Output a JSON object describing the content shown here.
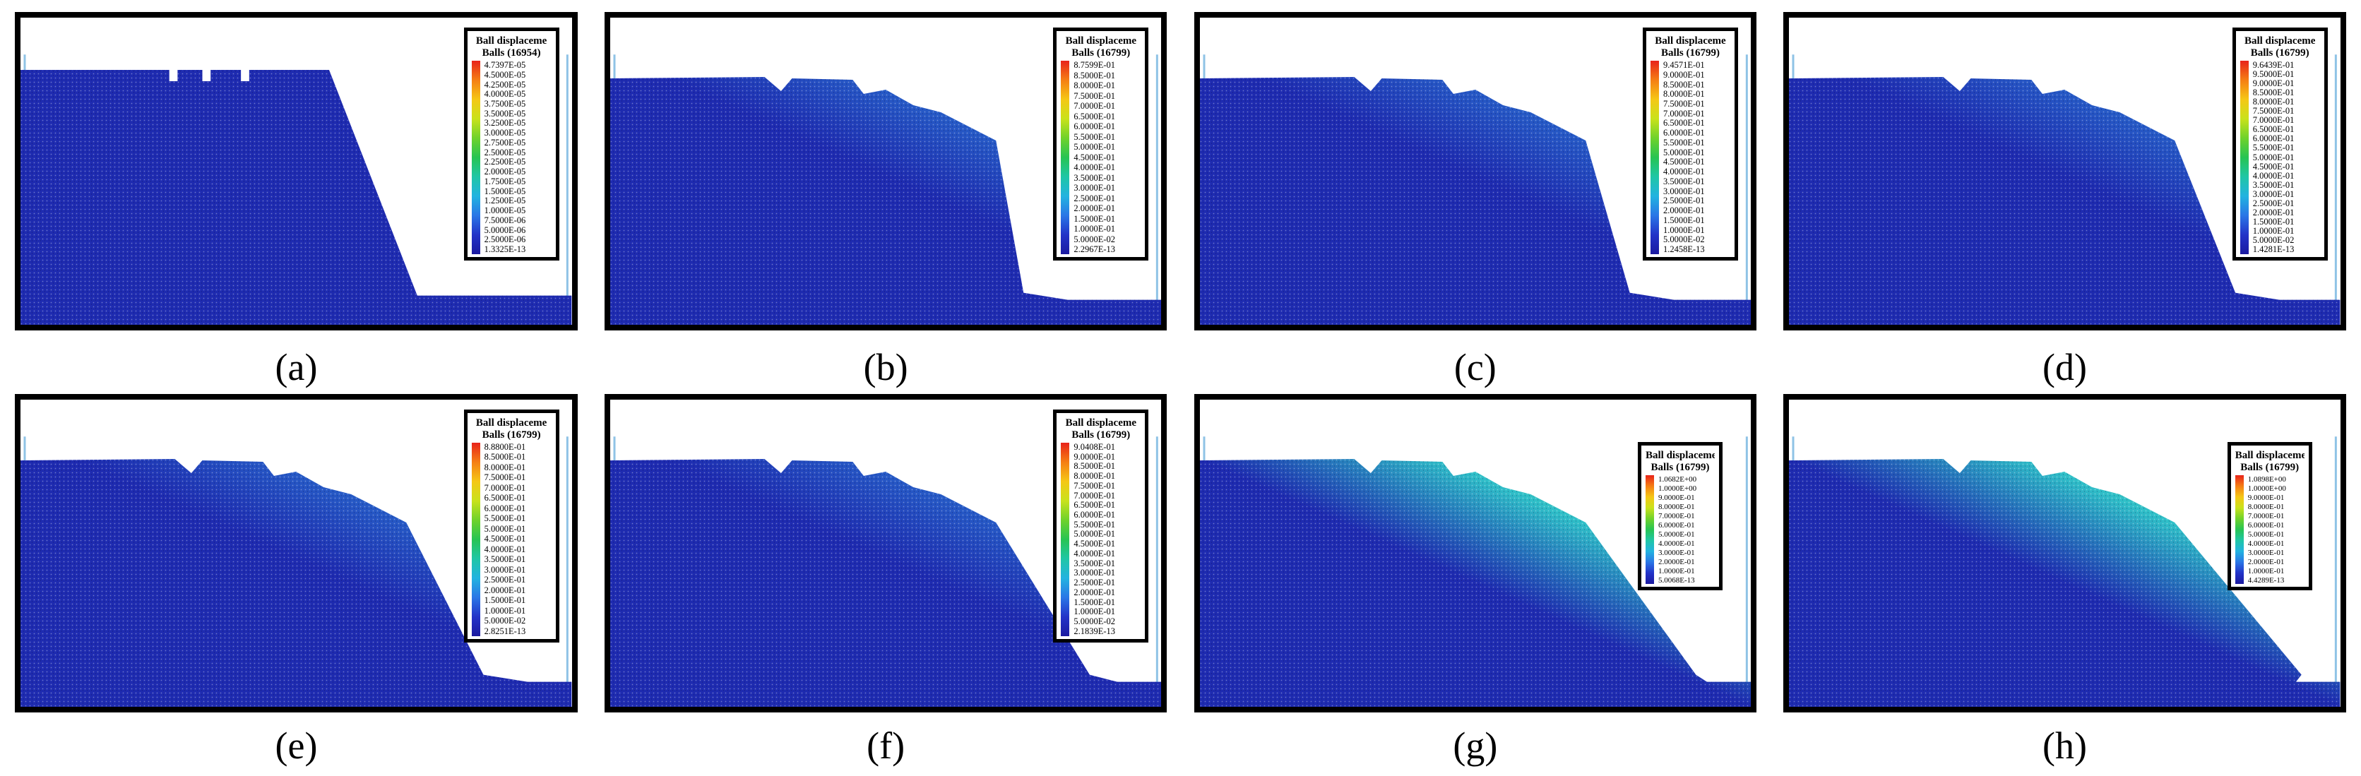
{
  "figure": {
    "panels": [
      {
        "id": "a",
        "caption": "(a)",
        "legend_title": "Ball displaceme",
        "legend_subtitle": "Balls (16954)",
        "legend_values": [
          "4.7397E-05",
          "4.5000E-05",
          "4.2500E-05",
          "4.0000E-05",
          "3.7500E-05",
          "3.5000E-05",
          "3.2500E-05",
          "3.0000E-05",
          "2.7500E-05",
          "2.5000E-05",
          "2.2500E-05",
          "2.0000E-05",
          "1.7500E-05",
          "1.5000E-05",
          "1.2500E-05",
          "1.0000E-05",
          "7.5000E-06",
          "5.0000E-06",
          "2.5000E-06",
          "1.3325E-13"
        ]
      },
      {
        "id": "b",
        "caption": "(b)",
        "legend_title": "Ball displaceme",
        "legend_subtitle": "Balls (16799)",
        "legend_values": [
          "8.7599E-01",
          "8.5000E-01",
          "8.0000E-01",
          "7.5000E-01",
          "7.0000E-01",
          "6.5000E-01",
          "6.0000E-01",
          "5.5000E-01",
          "5.0000E-01",
          "4.5000E-01",
          "4.0000E-01",
          "3.5000E-01",
          "3.0000E-01",
          "2.5000E-01",
          "2.0000E-01",
          "1.5000E-01",
          "1.0000E-01",
          "5.0000E-02",
          "2.2967E-13"
        ]
      },
      {
        "id": "c",
        "caption": "(c)",
        "legend_title": "Ball displaceme",
        "legend_subtitle": "Balls (16799)",
        "legend_values": [
          "9.4571E-01",
          "9.0000E-01",
          "8.5000E-01",
          "8.0000E-01",
          "7.5000E-01",
          "7.0000E-01",
          "6.5000E-01",
          "6.0000E-01",
          "5.5000E-01",
          "5.0000E-01",
          "4.5000E-01",
          "4.0000E-01",
          "3.5000E-01",
          "3.0000E-01",
          "2.5000E-01",
          "2.0000E-01",
          "1.5000E-01",
          "1.0000E-01",
          "5.0000E-02",
          "1.2458E-13"
        ]
      },
      {
        "id": "d",
        "caption": "(d)",
        "legend_title": "Ball displaceme",
        "legend_subtitle": "Balls (16799)",
        "legend_values": [
          "9.6439E-01",
          "9.5000E-01",
          "9.0000E-01",
          "8.5000E-01",
          "8.0000E-01",
          "7.5000E-01",
          "7.0000E-01",
          "6.5000E-01",
          "6.0000E-01",
          "5.5000E-01",
          "5.0000E-01",
          "4.5000E-01",
          "4.0000E-01",
          "3.5000E-01",
          "3.0000E-01",
          "2.5000E-01",
          "2.0000E-01",
          "1.5000E-01",
          "1.0000E-01",
          "5.0000E-02",
          "1.4281E-13"
        ]
      },
      {
        "id": "e",
        "caption": "(e)",
        "legend_title": "Ball displaceme",
        "legend_subtitle": "Balls (16799)",
        "legend_values": [
          "8.8800E-01",
          "8.5000E-01",
          "8.0000E-01",
          "7.5000E-01",
          "7.0000E-01",
          "6.5000E-01",
          "6.0000E-01",
          "5.5000E-01",
          "5.0000E-01",
          "4.5000E-01",
          "4.0000E-01",
          "3.5000E-01",
          "3.0000E-01",
          "2.5000E-01",
          "2.0000E-01",
          "1.5000E-01",
          "1.0000E-01",
          "5.0000E-02",
          "2.8251E-13"
        ]
      },
      {
        "id": "f",
        "caption": "(f)",
        "legend_title": "Ball displaceme",
        "legend_subtitle": "Balls (16799)",
        "legend_values": [
          "9.0408E-01",
          "9.0000E-01",
          "8.5000E-01",
          "8.0000E-01",
          "7.5000E-01",
          "7.0000E-01",
          "6.5000E-01",
          "6.0000E-01",
          "5.5000E-01",
          "5.0000E-01",
          "4.5000E-01",
          "4.0000E-01",
          "3.5000E-01",
          "3.0000E-01",
          "2.5000E-01",
          "2.0000E-01",
          "1.5000E-01",
          "1.0000E-01",
          "5.0000E-02",
          "2.1839E-13"
        ]
      },
      {
        "id": "g",
        "caption": "(g)",
        "legend_title": "Ball displaceme",
        "legend_subtitle": "Balls (16799)",
        "legend_values": [
          "1.0682E+00",
          "1.0000E+00",
          "9.0000E-01",
          "8.0000E-01",
          "7.0000E-01",
          "6.0000E-01",
          "5.0000E-01",
          "4.0000E-01",
          "3.0000E-01",
          "2.0000E-01",
          "1.0000E-01",
          "5.0068E-13"
        ]
      },
      {
        "id": "h",
        "caption": "(h)",
        "legend_title": "Ball displaceme",
        "legend_subtitle": "Balls (16799)",
        "legend_values": [
          "1.0898E+00",
          "1.0000E+00",
          "9.0000E-01",
          "8.0000E-01",
          "7.0000E-01",
          "6.0000E-01",
          "5.0000E-01",
          "4.0000E-01",
          "3.0000E-01",
          "2.0000E-01",
          "1.0000E-01",
          "4.4289E-13"
        ]
      }
    ],
    "colors": {
      "low": "#1e2bb0",
      "mid": "#2fc0c8",
      "high": "#7ed13a",
      "wall": "#8fc3e6",
      "frame": "#000000"
    },
    "colorbar": [
      "#e8231a",
      "#f57e14",
      "#f5c715",
      "#c9e21b",
      "#6fd22b",
      "#27c453",
      "#1fc6a6",
      "#22b3e0",
      "#2a76e6",
      "#2333c8",
      "#1b1aa0"
    ]
  }
}
